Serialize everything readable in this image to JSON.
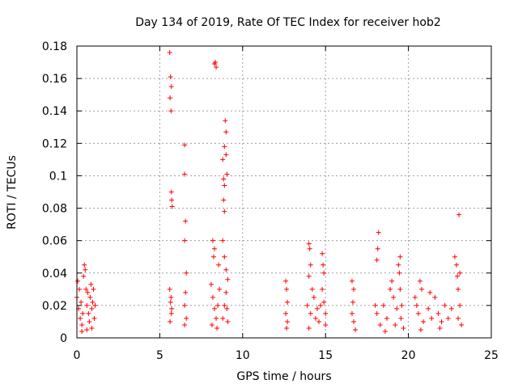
{
  "chart_data": {
    "type": "scatter",
    "title": "Day 134 of 2019, Rate Of TEC Index for receiver hob2",
    "xlabel": "GPS time / hours",
    "ylabel": "ROTI / TECUs",
    "xlim": [
      0,
      25
    ],
    "ylim": [
      0,
      0.18
    ],
    "x_ticks": [
      0,
      5,
      10,
      15,
      20,
      25
    ],
    "y_ticks": [
      0,
      0.02,
      0.04,
      0.06,
      0.08,
      0.1,
      0.12,
      0.14,
      0.16,
      0.18
    ],
    "x_tick_labels": [
      "0",
      "5",
      "10",
      "15",
      "20",
      "25"
    ],
    "y_tick_labels": [
      "0",
      "0.02",
      "0.04",
      "0.06",
      "0.08",
      "0.1",
      "0.12",
      "0.14",
      "0.16",
      "0.18"
    ],
    "grid": true,
    "marker": "+",
    "color": "#ff0000",
    "series": [
      {
        "points": [
          [
            0.0,
            0.025
          ],
          [
            0.05,
            0.035
          ],
          [
            0.1,
            0.018
          ],
          [
            0.15,
            0.03
          ],
          [
            0.2,
            0.012
          ],
          [
            0.25,
            0.022
          ],
          [
            0.3,
            0.008
          ],
          [
            0.35,
            0.015
          ],
          [
            0.4,
            0.038
          ],
          [
            0.45,
            0.045
          ],
          [
            0.5,
            0.042
          ],
          [
            0.55,
            0.03
          ],
          [
            0.6,
            0.02
          ],
          [
            0.65,
            0.028
          ],
          [
            0.7,
            0.015
          ],
          [
            0.75,
            0.01
          ],
          [
            0.8,
            0.025
          ],
          [
            0.85,
            0.033
          ],
          [
            0.9,
            0.018
          ],
          [
            0.95,
            0.022
          ],
          [
            1.0,
            0.03
          ],
          [
            1.05,
            0.012
          ],
          [
            1.1,
            0.02
          ],
          [
            0.3,
            0.004
          ],
          [
            0.6,
            0.005
          ],
          [
            0.9,
            0.006
          ],
          [
            5.6,
            0.176
          ],
          [
            5.65,
            0.161
          ],
          [
            5.7,
            0.155
          ],
          [
            5.62,
            0.148
          ],
          [
            5.68,
            0.14
          ],
          [
            5.7,
            0.09
          ],
          [
            5.72,
            0.085
          ],
          [
            5.75,
            0.081
          ],
          [
            5.6,
            0.03
          ],
          [
            5.65,
            0.022
          ],
          [
            5.7,
            0.015
          ],
          [
            5.62,
            0.01
          ],
          [
            5.68,
            0.025
          ],
          [
            5.72,
            0.018
          ],
          [
            6.5,
            0.119
          ],
          [
            6.5,
            0.101
          ],
          [
            6.55,
            0.072
          ],
          [
            6.5,
            0.06
          ],
          [
            6.6,
            0.04
          ],
          [
            6.55,
            0.028
          ],
          [
            6.5,
            0.02
          ],
          [
            6.6,
            0.012
          ],
          [
            6.5,
            0.008
          ],
          [
            8.3,
            0.169
          ],
          [
            8.35,
            0.17
          ],
          [
            8.4,
            0.167
          ],
          [
            8.2,
            0.06
          ],
          [
            8.25,
            0.05
          ],
          [
            8.3,
            0.055
          ],
          [
            8.1,
            0.033
          ],
          [
            8.2,
            0.025
          ],
          [
            8.3,
            0.018
          ],
          [
            8.4,
            0.012
          ],
          [
            8.5,
            0.02
          ],
          [
            8.6,
            0.03
          ],
          [
            8.15,
            0.008
          ],
          [
            8.45,
            0.006
          ],
          [
            8.55,
            0.045
          ],
          [
            8.8,
            0.11
          ],
          [
            8.85,
            0.098
          ],
          [
            8.9,
            0.094
          ],
          [
            8.95,
            0.134
          ],
          [
            9.0,
            0.127
          ],
          [
            8.9,
            0.118
          ],
          [
            9.0,
            0.113
          ],
          [
            9.05,
            0.101
          ],
          [
            8.85,
            0.085
          ],
          [
            8.9,
            0.078
          ],
          [
            8.8,
            0.06
          ],
          [
            8.9,
            0.05
          ],
          [
            9.0,
            0.042
          ],
          [
            9.1,
            0.036
          ],
          [
            9.0,
            0.028
          ],
          [
            8.9,
            0.02
          ],
          [
            8.8,
            0.012
          ],
          [
            9.1,
            0.01
          ],
          [
            9.05,
            0.018
          ],
          [
            12.6,
            0.035
          ],
          [
            12.65,
            0.03
          ],
          [
            12.7,
            0.022
          ],
          [
            12.6,
            0.015
          ],
          [
            12.7,
            0.01
          ],
          [
            12.65,
            0.006
          ],
          [
            13.9,
            0.02
          ],
          [
            14.0,
            0.058
          ],
          [
            14.05,
            0.055
          ],
          [
            14.1,
            0.045
          ],
          [
            14.0,
            0.038
          ],
          [
            14.2,
            0.03
          ],
          [
            14.1,
            0.015
          ],
          [
            14.3,
            0.025
          ],
          [
            14.4,
            0.012
          ],
          [
            14.5,
            0.018
          ],
          [
            14.6,
            0.01
          ],
          [
            14.7,
            0.02
          ],
          [
            14.8,
            0.052
          ],
          [
            14.85,
            0.045
          ],
          [
            14.9,
            0.04
          ],
          [
            14.8,
            0.03
          ],
          [
            14.9,
            0.022
          ],
          [
            15.0,
            0.015
          ],
          [
            15.0,
            0.008
          ],
          [
            14.0,
            0.006
          ],
          [
            16.6,
            0.035
          ],
          [
            16.7,
            0.03
          ],
          [
            16.65,
            0.022
          ],
          [
            16.6,
            0.015
          ],
          [
            16.7,
            0.01
          ],
          [
            16.8,
            0.005
          ],
          [
            18.0,
            0.02
          ],
          [
            18.1,
            0.015
          ],
          [
            18.2,
            0.065
          ],
          [
            18.15,
            0.055
          ],
          [
            18.1,
            0.048
          ],
          [
            18.3,
            0.008
          ],
          [
            18.5,
            0.02
          ],
          [
            18.7,
            0.012
          ],
          [
            18.9,
            0.03
          ],
          [
            19.0,
            0.035
          ],
          [
            19.1,
            0.025
          ],
          [
            19.3,
            0.018
          ],
          [
            19.4,
            0.045
          ],
          [
            19.5,
            0.05
          ],
          [
            19.45,
            0.04
          ],
          [
            19.5,
            0.03
          ],
          [
            19.6,
            0.02
          ],
          [
            19.55,
            0.012
          ],
          [
            19.7,
            0.006
          ],
          [
            18.6,
            0.004
          ],
          [
            19.2,
            0.008
          ],
          [
            20.4,
            0.025
          ],
          [
            20.5,
            0.02
          ],
          [
            20.6,
            0.015
          ],
          [
            20.7,
            0.035
          ],
          [
            20.8,
            0.03
          ],
          [
            20.9,
            0.01
          ],
          [
            20.75,
            0.005
          ],
          [
            21.2,
            0.018
          ],
          [
            21.3,
            0.028
          ],
          [
            21.4,
            0.012
          ],
          [
            21.6,
            0.025
          ],
          [
            21.8,
            0.015
          ],
          [
            22.0,
            0.01
          ],
          [
            22.2,
            0.02
          ],
          [
            22.4,
            0.012
          ],
          [
            22.6,
            0.018
          ],
          [
            22.8,
            0.05
          ],
          [
            22.9,
            0.045
          ],
          [
            22.95,
            0.038
          ],
          [
            23.0,
            0.03
          ],
          [
            23.05,
            0.076
          ],
          [
            23.1,
            0.04
          ],
          [
            23.1,
            0.02
          ],
          [
            23.2,
            0.008
          ],
          [
            23.0,
            0.012
          ],
          [
            21.9,
            0.006
          ]
        ]
      }
    ]
  }
}
